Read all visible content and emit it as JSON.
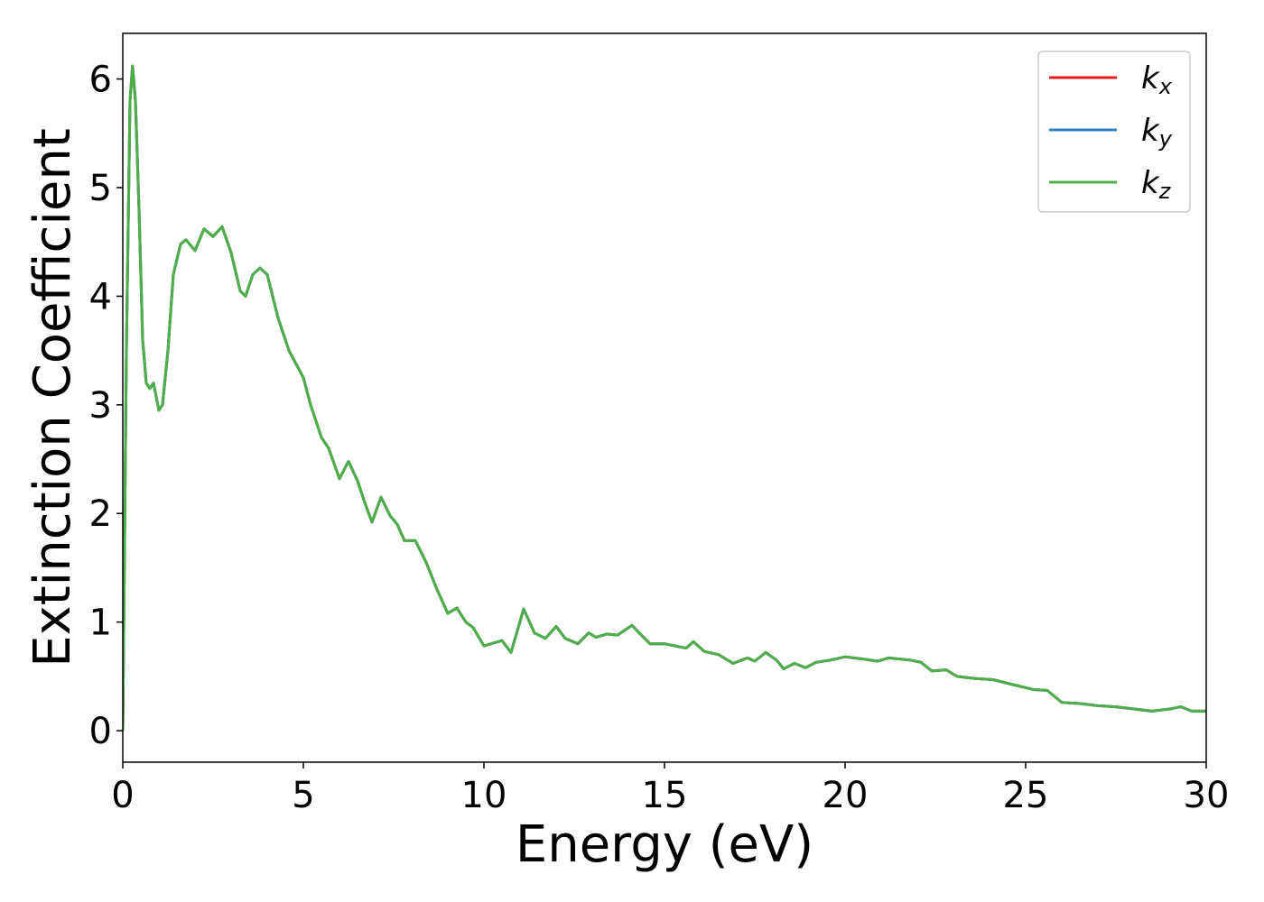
{
  "chart_data": {
    "type": "line",
    "x_label": "Energy (eV)",
    "y_label": "Extinction Coefficient",
    "x": [
      0,
      0.1,
      0.2,
      0.27,
      0.35,
      0.45,
      0.55,
      0.65,
      0.75,
      0.85,
      1.0,
      1.1,
      1.25,
      1.4,
      1.6,
      1.75,
      2.0,
      2.25,
      2.5,
      2.75,
      3.0,
      3.25,
      3.4,
      3.6,
      3.8,
      4.0,
      4.3,
      4.6,
      5.0,
      5.2,
      5.5,
      5.7,
      6.0,
      6.25,
      6.5,
      6.7,
      6.9,
      7.15,
      7.4,
      7.6,
      7.8,
      8.1,
      8.4,
      8.7,
      9.0,
      9.25,
      9.5,
      9.7,
      10.0,
      10.2,
      10.5,
      10.75,
      11.1,
      11.4,
      11.7,
      12.0,
      12.25,
      12.6,
      12.9,
      13.1,
      13.4,
      13.7,
      14.1,
      14.3,
      14.6,
      15.0,
      15.3,
      15.6,
      15.8,
      16.1,
      16.5,
      16.9,
      17.3,
      17.5,
      17.8,
      18.1,
      18.3,
      18.6,
      18.9,
      19.2,
      19.6,
      20.0,
      20.5,
      20.9,
      21.2,
      21.8,
      22.1,
      22.4,
      22.8,
      23.1,
      23.6,
      24.1,
      24.7,
      25.2,
      25.6,
      26.0,
      26.5,
      27.0,
      27.5,
      28.0,
      28.5,
      29.0,
      29.3,
      29.6,
      30.0
    ],
    "series": [
      {
        "name": "kx",
        "color": "#e41a1c",
        "values": [
          0,
          3.5,
          5.8,
          6.12,
          5.8,
          4.8,
          3.6,
          3.2,
          3.15,
          3.2,
          2.95,
          3.0,
          3.5,
          4.2,
          4.48,
          4.52,
          4.42,
          4.62,
          4.55,
          4.64,
          4.4,
          4.05,
          4.0,
          4.2,
          4.26,
          4.2,
          3.8,
          3.5,
          3.25,
          3.0,
          2.7,
          2.6,
          2.32,
          2.48,
          2.3,
          2.1,
          1.92,
          2.15,
          1.98,
          1.9,
          1.75,
          1.75,
          1.55,
          1.3,
          1.08,
          1.13,
          1.0,
          0.95,
          0.78,
          0.8,
          0.83,
          0.72,
          1.12,
          0.9,
          0.85,
          0.96,
          0.85,
          0.8,
          0.9,
          0.86,
          0.89,
          0.88,
          0.97,
          0.9,
          0.8,
          0.8,
          0.78,
          0.76,
          0.82,
          0.73,
          0.7,
          0.62,
          0.67,
          0.64,
          0.72,
          0.65,
          0.57,
          0.62,
          0.58,
          0.63,
          0.65,
          0.68,
          0.66,
          0.64,
          0.67,
          0.65,
          0.63,
          0.55,
          0.56,
          0.5,
          0.48,
          0.47,
          0.42,
          0.38,
          0.37,
          0.26,
          0.25,
          0.23,
          0.22,
          0.2,
          0.18,
          0.2,
          0.22,
          0.18,
          0.18
        ]
      },
      {
        "name": "ky",
        "color": "#377eb8",
        "values": [
          0,
          3.5,
          5.8,
          6.12,
          5.8,
          4.8,
          3.6,
          3.2,
          3.15,
          3.2,
          2.95,
          3.0,
          3.5,
          4.2,
          4.48,
          4.52,
          4.42,
          4.62,
          4.55,
          4.64,
          4.4,
          4.05,
          4.0,
          4.2,
          4.26,
          4.2,
          3.8,
          3.5,
          3.25,
          3.0,
          2.7,
          2.6,
          2.32,
          2.48,
          2.3,
          2.1,
          1.92,
          2.15,
          1.98,
          1.9,
          1.75,
          1.75,
          1.55,
          1.3,
          1.08,
          1.13,
          1.0,
          0.95,
          0.78,
          0.8,
          0.83,
          0.72,
          1.12,
          0.9,
          0.85,
          0.96,
          0.85,
          0.8,
          0.9,
          0.86,
          0.89,
          0.88,
          0.97,
          0.9,
          0.8,
          0.8,
          0.78,
          0.76,
          0.82,
          0.73,
          0.7,
          0.62,
          0.67,
          0.64,
          0.72,
          0.65,
          0.57,
          0.62,
          0.58,
          0.63,
          0.65,
          0.68,
          0.66,
          0.64,
          0.67,
          0.65,
          0.63,
          0.55,
          0.56,
          0.5,
          0.48,
          0.47,
          0.42,
          0.38,
          0.37,
          0.26,
          0.25,
          0.23,
          0.22,
          0.2,
          0.18,
          0.2,
          0.22,
          0.18,
          0.18
        ]
      },
      {
        "name": "kz",
        "color": "#4daf4a",
        "values": [
          0,
          3.5,
          5.8,
          6.12,
          5.8,
          4.8,
          3.6,
          3.2,
          3.15,
          3.2,
          2.95,
          3.0,
          3.5,
          4.2,
          4.48,
          4.52,
          4.42,
          4.62,
          4.55,
          4.64,
          4.4,
          4.05,
          4.0,
          4.2,
          4.26,
          4.2,
          3.8,
          3.5,
          3.25,
          3.0,
          2.7,
          2.6,
          2.32,
          2.48,
          2.3,
          2.1,
          1.92,
          2.15,
          1.98,
          1.9,
          1.75,
          1.75,
          1.55,
          1.3,
          1.08,
          1.13,
          1.0,
          0.95,
          0.78,
          0.8,
          0.83,
          0.72,
          1.12,
          0.9,
          0.85,
          0.96,
          0.85,
          0.8,
          0.9,
          0.86,
          0.89,
          0.88,
          0.97,
          0.9,
          0.8,
          0.8,
          0.78,
          0.76,
          0.82,
          0.73,
          0.7,
          0.62,
          0.67,
          0.64,
          0.72,
          0.65,
          0.57,
          0.62,
          0.58,
          0.63,
          0.65,
          0.68,
          0.66,
          0.64,
          0.67,
          0.65,
          0.63,
          0.55,
          0.56,
          0.5,
          0.48,
          0.47,
          0.42,
          0.38,
          0.37,
          0.26,
          0.25,
          0.23,
          0.22,
          0.2,
          0.18,
          0.2,
          0.22,
          0.18,
          0.18
        ]
      }
    ],
    "xlim": [
      0,
      30
    ],
    "xticks": [
      0,
      5,
      10,
      15,
      20,
      25,
      30
    ],
    "ylim": [
      -0.29,
      6.42
    ],
    "yticks": [
      0,
      1,
      2,
      3,
      4,
      5,
      6
    ],
    "grid": false,
    "legend": "upper right"
  }
}
